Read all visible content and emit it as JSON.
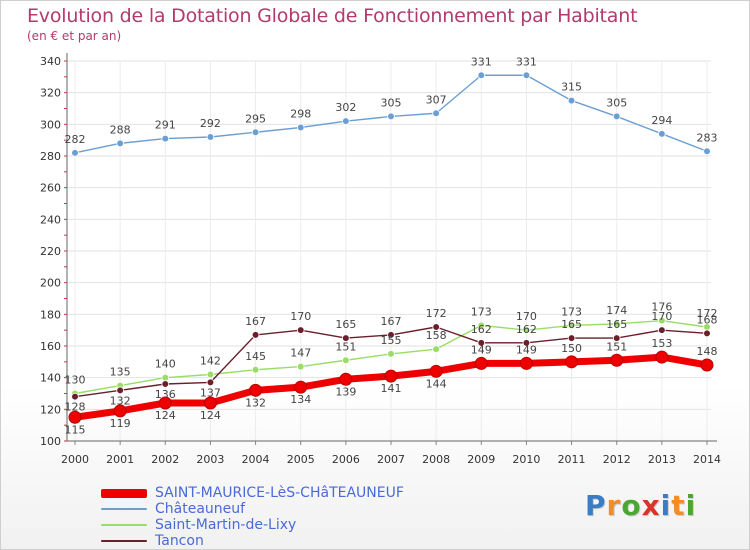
{
  "chart_data": {
    "type": "line",
    "title": "Evolution de la Dotation Globale de Fonctionnement par Habitant",
    "subtitle": "(en € et par an)",
    "xlabel": "",
    "ylabel": "",
    "x": [
      "2000",
      "2001",
      "2002",
      "2003",
      "2004",
      "2005",
      "2006",
      "2007",
      "2008",
      "2009",
      "2010",
      "2011",
      "2012",
      "2013",
      "2014"
    ],
    "ylim": [
      100,
      340
    ],
    "yticks": [
      100,
      120,
      140,
      160,
      180,
      200,
      220,
      240,
      260,
      280,
      300,
      320,
      340
    ],
    "grid": true,
    "legend_position": "bottom-left",
    "series": [
      {
        "name": "SAINT-MAURICE-LèS-CHâTEAUNEUF",
        "color": "#ee0000",
        "values": [
          115,
          119,
          124,
          124,
          132,
          134,
          139,
          141,
          144,
          149,
          149,
          150,
          151,
          153,
          148
        ]
      },
      {
        "name": "Châteauneuf",
        "color": "#6b9fd3",
        "values": [
          282,
          288,
          291,
          292,
          295,
          298,
          302,
          305,
          307,
          331,
          331,
          315,
          305,
          294,
          283
        ]
      },
      {
        "name": "Saint-Martin-de-Lixy",
        "color": "#99dd66",
        "values": [
          130,
          135,
          140,
          142,
          145,
          147,
          151,
          155,
          158,
          173,
          170,
          173,
          174,
          176,
          172
        ]
      },
      {
        "name": "Tancon",
        "color": "#6b1f2a",
        "values": [
          128,
          132,
          136,
          137,
          167,
          170,
          165,
          167,
          172,
          162,
          162,
          165,
          165,
          170,
          168
        ]
      }
    ]
  },
  "logo": {
    "letters": [
      "P",
      "r",
      "o",
      "x",
      "i",
      "t",
      "i"
    ],
    "colors": [
      "#3a7cc8",
      "#f28c28",
      "#4aa830",
      "#d8352a",
      "#3a7cc8",
      "#f28c28",
      "#4aa830"
    ]
  }
}
